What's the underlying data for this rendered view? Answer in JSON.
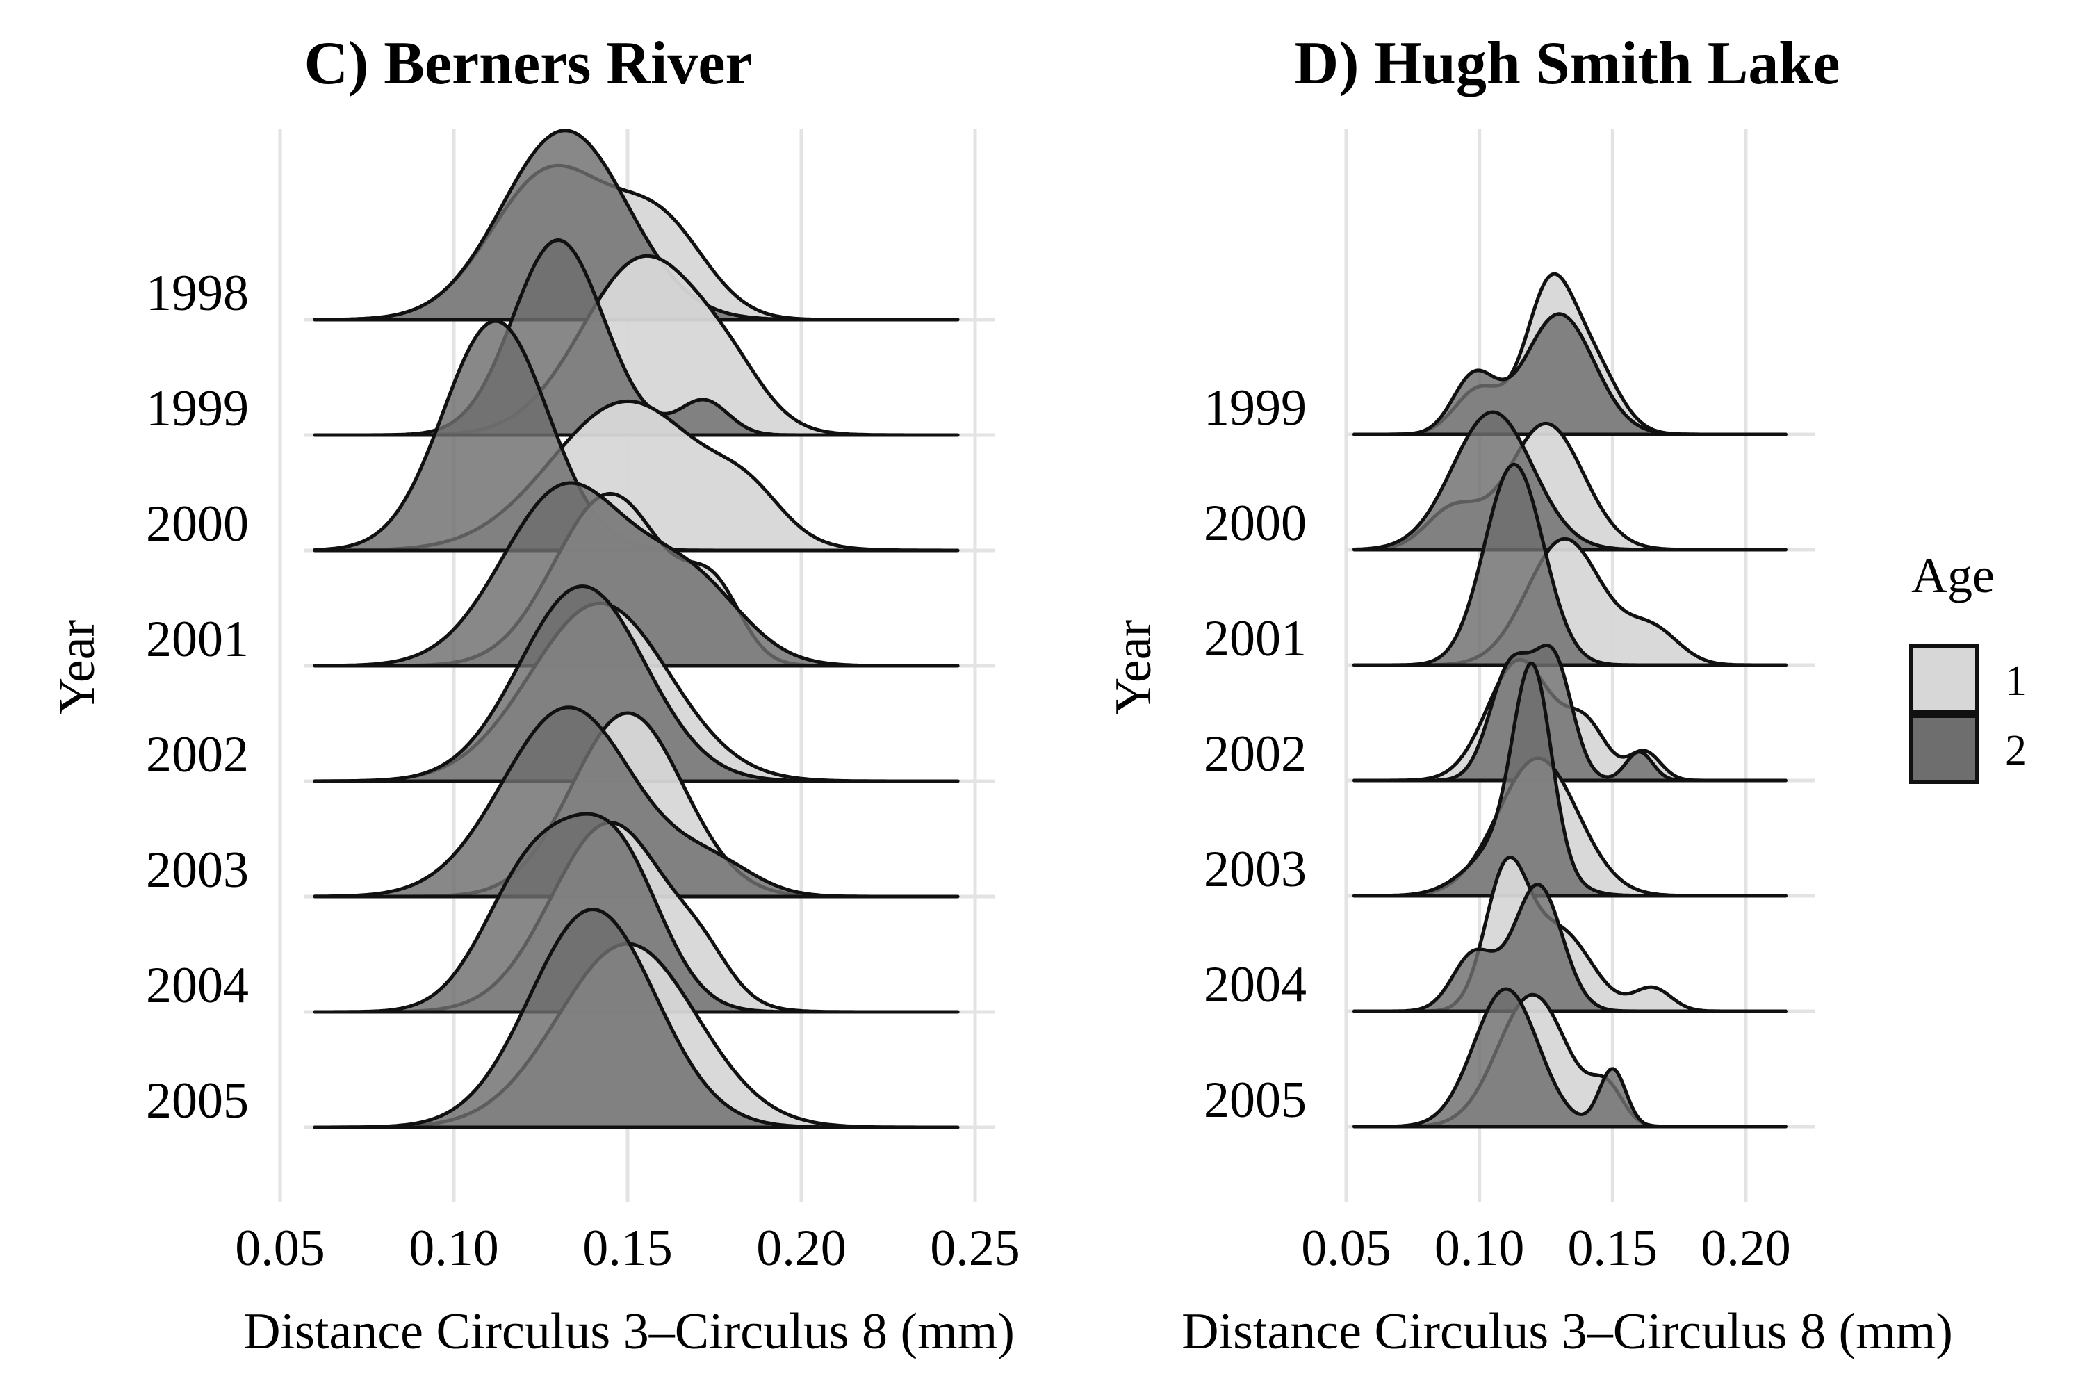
{
  "colors": {
    "age1_fill": "#d7d7d7",
    "age2_fill": "#6e6e6e",
    "outline": "#111111",
    "grid": "#e3e3e3"
  },
  "legend": {
    "title": "Age",
    "entries": [
      {
        "label": "1",
        "color": "#d7d7d7"
      },
      {
        "label": "2",
        "color": "#6e6e6e"
      }
    ],
    "placement": "right"
  },
  "chart_data": [
    {
      "type": "area",
      "subtype": "ridgeline-density",
      "title": "C) Berners River",
      "xlabel": "Distance Circulus 3–Circulus 8 (mm)",
      "ylabel": "Year",
      "xlim": [
        0.05,
        0.25
      ],
      "xticks": [
        "0.05",
        "0.10",
        "0.15",
        "0.20",
        "0.25"
      ],
      "grid": true,
      "categories": [
        "1998",
        "1999",
        "2000",
        "2001",
        "2002",
        "2003",
        "2004",
        "2005"
      ],
      "series": [
        {
          "name": "1",
          "ridges": [
            {
              "year": "1998",
              "peaks": [
                {
                  "mu": 0.128,
                  "sd": 0.017,
                  "h": 1.3
                },
                {
                  "mu": 0.16,
                  "sd": 0.013,
                  "h": 0.75
                }
              ]
            },
            {
              "year": "1999",
              "peaks": [
                {
                  "mu": 0.155,
                  "sd": 0.018,
                  "h": 1.55
                },
                {
                  "mu": 0.18,
                  "sd": 0.01,
                  "h": 0.25
                }
              ]
            },
            {
              "year": "2000",
              "peaks": [
                {
                  "mu": 0.15,
                  "sd": 0.022,
                  "h": 1.3
                },
                {
                  "mu": 0.185,
                  "sd": 0.01,
                  "h": 0.3
                }
              ]
            },
            {
              "year": "2001",
              "peaks": [
                {
                  "mu": 0.145,
                  "sd": 0.016,
                  "h": 1.5
                },
                {
                  "mu": 0.175,
                  "sd": 0.008,
                  "h": 0.55
                }
              ]
            },
            {
              "year": "2002",
              "peaks": [
                {
                  "mu": 0.142,
                  "sd": 0.02,
                  "h": 1.55
                }
              ]
            },
            {
              "year": "2003",
              "peaks": [
                {
                  "mu": 0.15,
                  "sd": 0.016,
                  "h": 1.6
                }
              ]
            },
            {
              "year": "2004",
              "peaks": [
                {
                  "mu": 0.145,
                  "sd": 0.017,
                  "h": 1.65
                },
                {
                  "mu": 0.172,
                  "sd": 0.008,
                  "h": 0.25
                }
              ]
            },
            {
              "year": "2005",
              "peaks": [
                {
                  "mu": 0.15,
                  "sd": 0.02,
                  "h": 1.6
                }
              ]
            }
          ]
        },
        {
          "name": "2",
          "ridges": [
            {
              "year": "1998",
              "peaks": [
                {
                  "mu": 0.132,
                  "sd": 0.018,
                  "h": 1.65
                }
              ]
            },
            {
              "year": "1999",
              "peaks": [
                {
                  "mu": 0.13,
                  "sd": 0.013,
                  "h": 1.7
                },
                {
                  "mu": 0.172,
                  "sd": 0.007,
                  "h": 0.3
                }
              ]
            },
            {
              "year": "2000",
              "peaks": [
                {
                  "mu": 0.112,
                  "sd": 0.015,
                  "h": 2.0
                }
              ]
            },
            {
              "year": "2001",
              "peaks": [
                {
                  "mu": 0.132,
                  "sd": 0.018,
                  "h": 1.55
                },
                {
                  "mu": 0.168,
                  "sd": 0.015,
                  "h": 0.7
                }
              ]
            },
            {
              "year": "2002",
              "peaks": [
                {
                  "mu": 0.137,
                  "sd": 0.018,
                  "h": 1.7
                }
              ]
            },
            {
              "year": "2003",
              "peaks": [
                {
                  "mu": 0.133,
                  "sd": 0.019,
                  "h": 1.65
                },
                {
                  "mu": 0.175,
                  "sd": 0.012,
                  "h": 0.25
                }
              ]
            },
            {
              "year": "2004",
              "peaks": [
                {
                  "mu": 0.123,
                  "sd": 0.014,
                  "h": 1.25
                },
                {
                  "mu": 0.147,
                  "sd": 0.013,
                  "h": 1.3
                }
              ]
            },
            {
              "year": "2005",
              "peaks": [
                {
                  "mu": 0.14,
                  "sd": 0.018,
                  "h": 1.9
                }
              ]
            }
          ]
        }
      ]
    },
    {
      "type": "area",
      "subtype": "ridgeline-density",
      "title": "D) Hugh Smith Lake",
      "xlabel": "Distance Circulus 3–Circulus 8 (mm)",
      "ylabel": "Year",
      "xlim": [
        0.05,
        0.2
      ],
      "xticks": [
        "0.05",
        "0.10",
        "0.15",
        "0.20"
      ],
      "grid": true,
      "categories": [
        "1999",
        "2000",
        "2001",
        "2002",
        "2003",
        "2004",
        "2005"
      ],
      "series": [
        {
          "name": "1",
          "ridges": [
            {
              "year": "1999",
              "peaks": [
                {
                  "mu": 0.126,
                  "sd": 0.009,
                  "h": 1.2
                },
                {
                  "mu": 0.1,
                  "sd": 0.009,
                  "h": 0.4
                },
                {
                  "mu": 0.142,
                  "sd": 0.01,
                  "h": 0.6
                }
              ]
            },
            {
              "year": "2000",
              "peaks": [
                {
                  "mu": 0.125,
                  "sd": 0.014,
                  "h": 1.1
                },
                {
                  "mu": 0.09,
                  "sd": 0.01,
                  "h": 0.35
                }
              ]
            },
            {
              "year": "2001",
              "peaks": [
                {
                  "mu": 0.132,
                  "sd": 0.014,
                  "h": 1.1
                },
                {
                  "mu": 0.165,
                  "sd": 0.01,
                  "h": 0.3
                }
              ]
            },
            {
              "year": "2002",
              "peaks": [
                {
                  "mu": 0.115,
                  "sd": 0.012,
                  "h": 1.05
                },
                {
                  "mu": 0.14,
                  "sd": 0.008,
                  "h": 0.45
                },
                {
                  "mu": 0.162,
                  "sd": 0.006,
                  "h": 0.25
                }
              ]
            },
            {
              "year": "2003",
              "peaks": [
                {
                  "mu": 0.122,
                  "sd": 0.015,
                  "h": 1.2
                }
              ]
            },
            {
              "year": "2004",
              "peaks": [
                {
                  "mu": 0.11,
                  "sd": 0.008,
                  "h": 1.15
                },
                {
                  "mu": 0.13,
                  "sd": 0.012,
                  "h": 0.7
                },
                {
                  "mu": 0.165,
                  "sd": 0.007,
                  "h": 0.2
                }
              ]
            },
            {
              "year": "2005",
              "peaks": [
                {
                  "mu": 0.12,
                  "sd": 0.013,
                  "h": 1.15
                },
                {
                  "mu": 0.148,
                  "sd": 0.006,
                  "h": 0.3
                }
              ]
            }
          ]
        },
        {
          "name": "2",
          "ridges": [
            {
              "year": "1999",
              "peaks": [
                {
                  "mu": 0.13,
                  "sd": 0.013,
                  "h": 1.05
                },
                {
                  "mu": 0.098,
                  "sd": 0.008,
                  "h": 0.5
                }
              ]
            },
            {
              "year": "2000",
              "peaks": [
                {
                  "mu": 0.105,
                  "sd": 0.015,
                  "h": 1.2
                }
              ]
            },
            {
              "year": "2001",
              "peaks": [
                {
                  "mu": 0.113,
                  "sd": 0.011,
                  "h": 1.75
                }
              ]
            },
            {
              "year": "2002",
              "peaks": [
                {
                  "mu": 0.112,
                  "sd": 0.008,
                  "h": 1.0
                },
                {
                  "mu": 0.128,
                  "sd": 0.007,
                  "h": 1.0
                },
                {
                  "mu": 0.16,
                  "sd": 0.005,
                  "h": 0.25
                }
              ]
            },
            {
              "year": "2003",
              "peaks": [
                {
                  "mu": 0.12,
                  "sd": 0.007,
                  "h": 1.6
                },
                {
                  "mu": 0.112,
                  "sd": 0.014,
                  "h": 0.5
                }
              ]
            },
            {
              "year": "2004",
              "peaks": [
                {
                  "mu": 0.122,
                  "sd": 0.009,
                  "h": 1.1
                },
                {
                  "mu": 0.098,
                  "sd": 0.008,
                  "h": 0.5
                }
              ]
            },
            {
              "year": "2005",
              "peaks": [
                {
                  "mu": 0.11,
                  "sd": 0.012,
                  "h": 1.2
                },
                {
                  "mu": 0.15,
                  "sd": 0.005,
                  "h": 0.5
                }
              ]
            }
          ]
        }
      ]
    }
  ]
}
